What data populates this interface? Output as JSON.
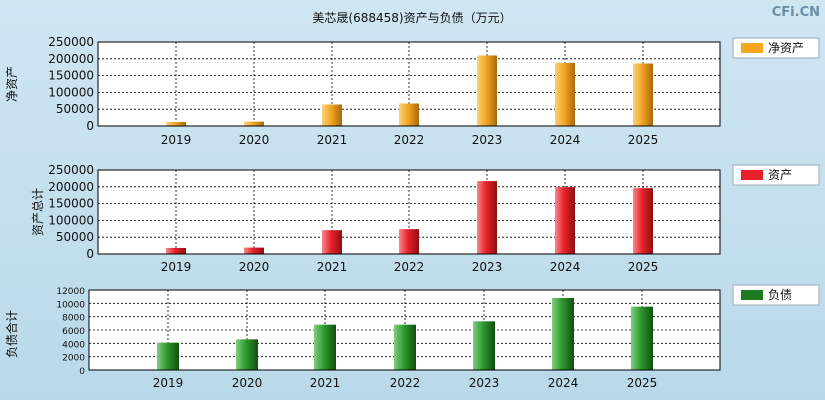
{
  "title": "美芯晟(688458)资产与负债（万元）",
  "watermark": "CFi.CN",
  "chart_data": [
    {
      "type": "bar",
      "ylabel": "净资产",
      "legend": "净资产",
      "color": "#f5a623",
      "categories": [
        "2019",
        "2020",
        "2021",
        "2022",
        "2023",
        "2024",
        "2025"
      ],
      "values": [
        12000,
        13000,
        64000,
        67000,
        210000,
        188000,
        186000
      ],
      "ylim": [
        0,
        250000
      ],
      "yticks": [
        0,
        50000,
        100000,
        150000,
        200000,
        250000
      ],
      "grid": true,
      "legend_position": "top-right"
    },
    {
      "type": "bar",
      "ylabel": "资产总计",
      "legend": "资产",
      "color": "#e8222a",
      "categories": [
        "2019",
        "2020",
        "2021",
        "2022",
        "2023",
        "2024",
        "2025"
      ],
      "values": [
        18000,
        19000,
        71000,
        74000,
        217000,
        199000,
        196000
      ],
      "ylim": [
        0,
        250000
      ],
      "yticks": [
        0,
        50000,
        100000,
        150000,
        200000,
        250000
      ],
      "grid": true,
      "legend_position": "top-right"
    },
    {
      "type": "bar",
      "ylabel": "负债合计",
      "legend": "负债",
      "color": "#1e7a1e",
      "categories": [
        "2019",
        "2020",
        "2021",
        "2022",
        "2023",
        "2024",
        "2025"
      ],
      "values": [
        4100,
        4600,
        6800,
        6800,
        7300,
        10800,
        9500
      ],
      "ylim": [
        0,
        12000
      ],
      "yticks": [
        0,
        2000,
        4000,
        6000,
        8000,
        10000,
        12000
      ],
      "grid": true,
      "legend_position": "top-right"
    }
  ]
}
